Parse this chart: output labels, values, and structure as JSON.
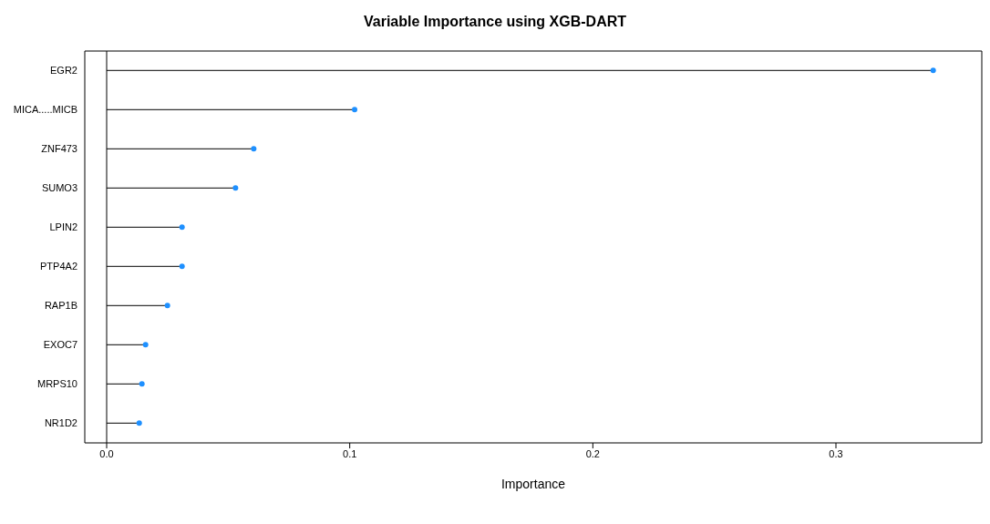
{
  "chart_data": {
    "type": "lollipop",
    "orientation": "horizontal",
    "title": "Variable Importance using XGB-DART",
    "xlabel": "Importance",
    "categories": [
      "EGR2",
      "MICA.....MICB",
      "ZNF473",
      "SUMO3",
      "LPIN2",
      "PTP4A2",
      "RAP1B",
      "EXOC7",
      "MRPS10",
      "NR1D2"
    ],
    "values": [
      0.34,
      0.102,
      0.0605,
      0.053,
      0.031,
      0.031,
      0.025,
      0.016,
      0.0145,
      0.0134
    ],
    "color": "#1e90ff",
    "marker": "circle",
    "xlim": [
      -0.009,
      0.36
    ],
    "xticks": [
      {
        "value": 0,
        "label": "0.0"
      },
      0.1,
      0.2,
      0.3
    ],
    "ref_lines": [
      {
        "axis": "x",
        "value": 0,
        "color": "#000000"
      }
    ]
  }
}
